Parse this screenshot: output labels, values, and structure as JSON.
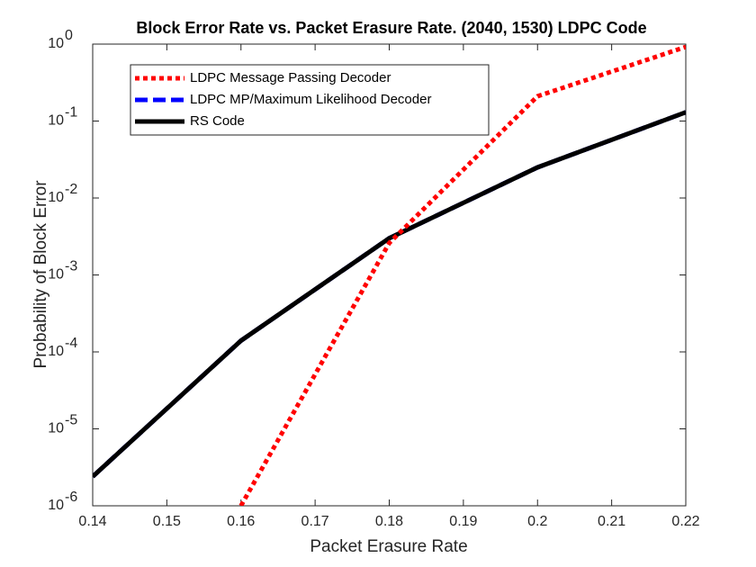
{
  "chart_data": {
    "type": "line",
    "title": "Block Error Rate vs. Packet Erasure Rate.  (2040, 1530) LDPC Code",
    "x_label": "Packet Erasure Rate",
    "y_label": "Probability of Block Error",
    "x": [
      0.14,
      0.16,
      0.18,
      0.2,
      0.22
    ],
    "series": [
      {
        "name": "LDPC Message Passing Decoder",
        "color": "#ff0000",
        "dash": "dotted",
        "values": [
          null,
          1e-06,
          0.0026,
          0.21,
          0.92
        ]
      },
      {
        "name": "LDPC MP/Maximum Likelihood Decoder",
        "color": "#0000ff",
        "dash": "dashed",
        "values": [
          2.4e-06,
          0.00014,
          0.003,
          0.025,
          0.13
        ]
      },
      {
        "name": "RS Code",
        "color": "#000000",
        "dash": "solid",
        "values": [
          2.4e-06,
          0.00014,
          0.003,
          0.025,
          0.13
        ]
      }
    ],
    "xlim": [
      0.14,
      0.22
    ],
    "xticks": [
      0.14,
      0.15,
      0.16,
      0.17,
      0.18,
      0.19,
      0.2,
      0.21,
      0.22
    ],
    "ylim": [
      1e-06,
      1
    ],
    "yscale": "log",
    "yticks": [
      {
        "value": 1e-06,
        "label": "10",
        "exponent": "-6"
      },
      {
        "value": 1e-05,
        "label": "10",
        "exponent": "-5"
      },
      {
        "value": 0.0001,
        "label": "10",
        "exponent": "-4"
      },
      {
        "value": 0.001,
        "label": "10",
        "exponent": "-3"
      },
      {
        "value": 0.01,
        "label": "10",
        "exponent": "-2"
      },
      {
        "value": 0.1,
        "label": "10",
        "exponent": "-1"
      },
      {
        "value": 1,
        "label": "10",
        "exponent": "0"
      }
    ],
    "legend": "upper left"
  }
}
